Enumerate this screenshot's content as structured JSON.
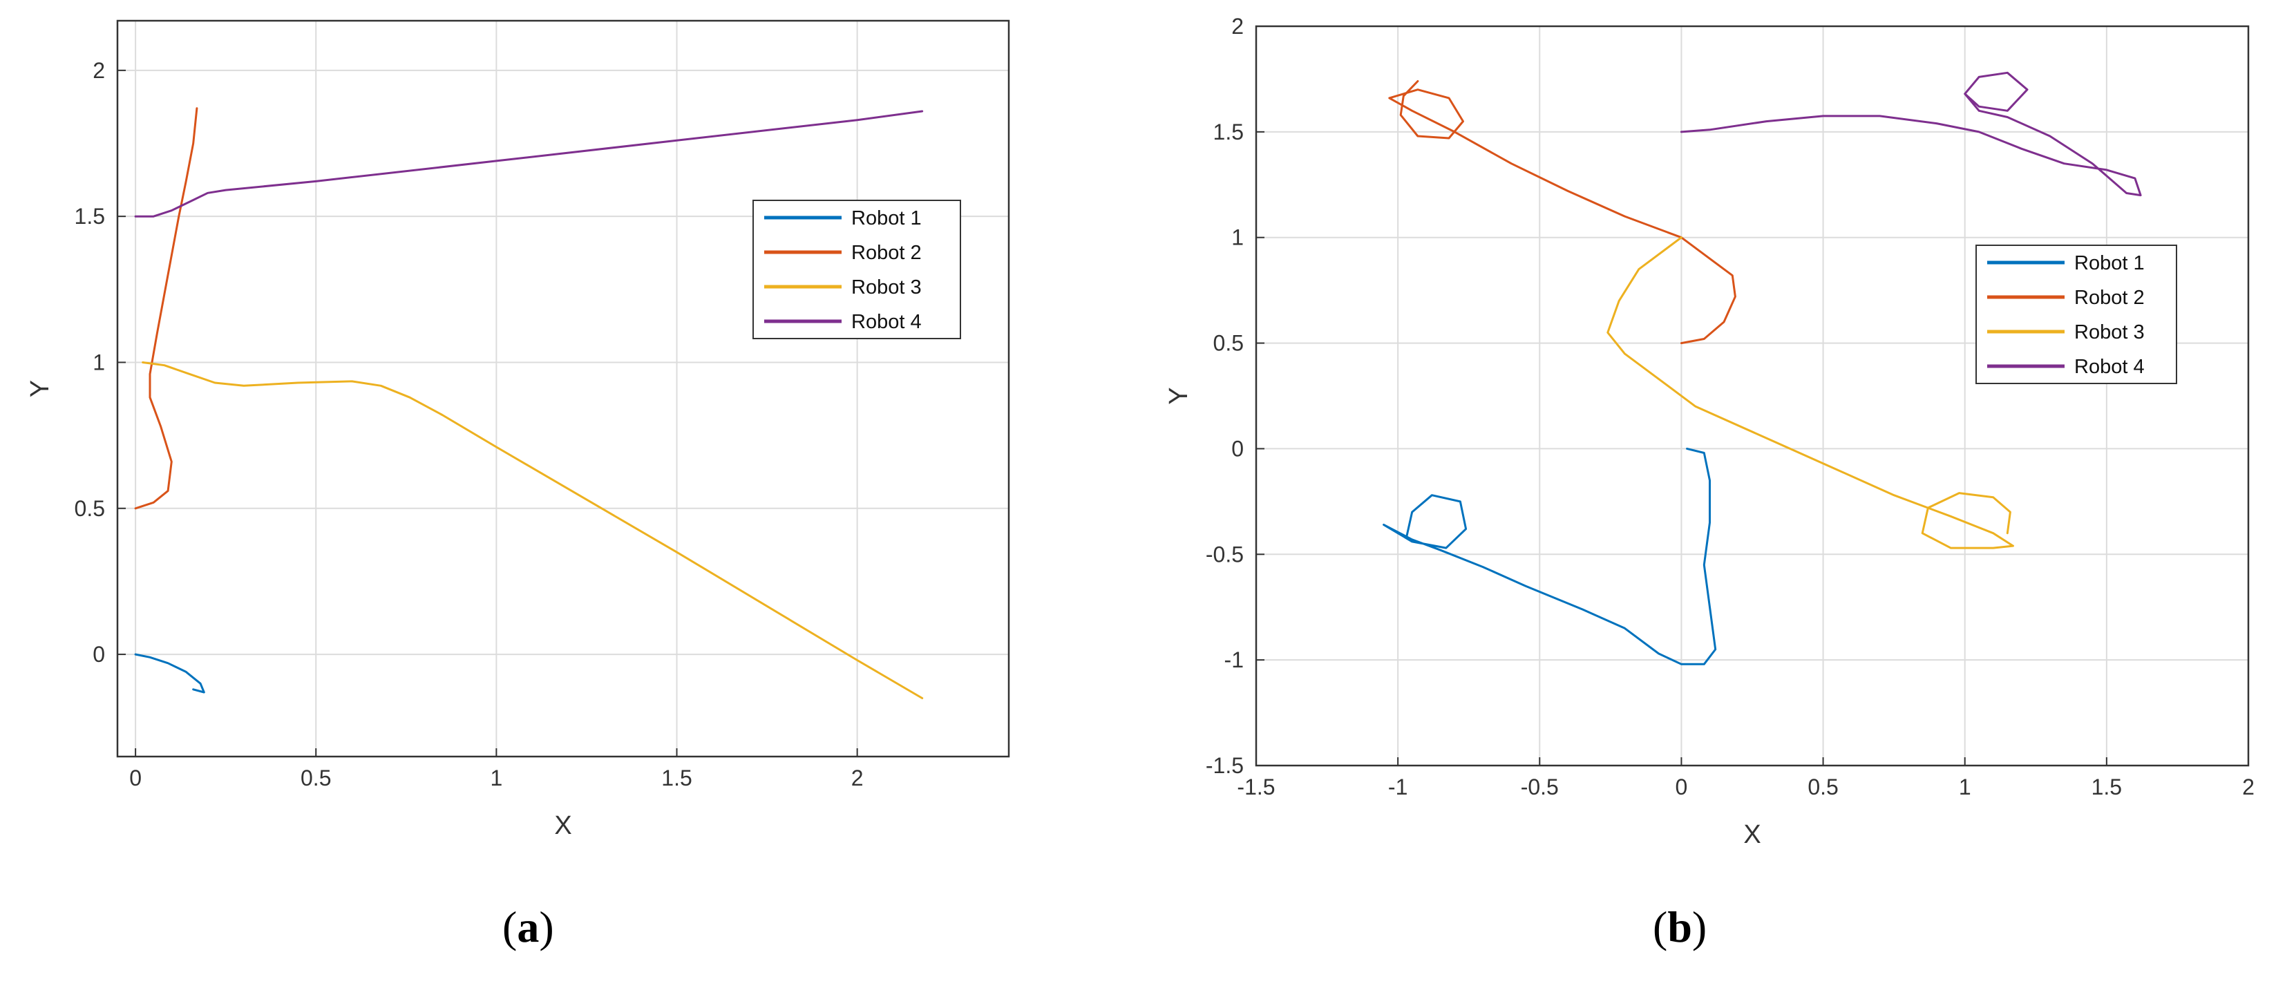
{
  "chart_data": [
    {
      "type": "line",
      "panel_label": "a",
      "xlabel": "X",
      "ylabel": "Y",
      "xlim": [
        -0.05,
        2.42
      ],
      "ylim": [
        -0.35,
        2.17
      ],
      "xticks": [
        0,
        0.5,
        1,
        1.5,
        2
      ],
      "yticks": [
        0,
        0.5,
        1,
        1.5,
        2
      ],
      "xtick_labels": [
        "0",
        "0.5",
        "1",
        "1.5",
        "2"
      ],
      "ytick_labels": [
        "0",
        "0.5",
        "1",
        "1.5",
        "2"
      ],
      "grid": true,
      "legend_position": "right",
      "series": [
        {
          "name": "Robot 1",
          "color": "#0072BD",
          "points": [
            [
              0,
              0
            ],
            [
              0.04,
              -0.01
            ],
            [
              0.09,
              -0.03
            ],
            [
              0.14,
              -0.06
            ],
            [
              0.18,
              -0.1
            ],
            [
              0.19,
              -0.13
            ],
            [
              0.16,
              -0.12
            ]
          ]
        },
        {
          "name": "Robot 2",
          "color": "#D95319",
          "points": [
            [
              0,
              0.5
            ],
            [
              0.05,
              0.52
            ],
            [
              0.09,
              0.56
            ],
            [
              0.1,
              0.66
            ],
            [
              0.07,
              0.78
            ],
            [
              0.04,
              0.88
            ],
            [
              0.04,
              0.96
            ],
            [
              0.06,
              1.1
            ],
            [
              0.09,
              1.3
            ],
            [
              0.12,
              1.5
            ],
            [
              0.14,
              1.62
            ],
            [
              0.16,
              1.75
            ],
            [
              0.17,
              1.87
            ]
          ]
        },
        {
          "name": "Robot 3",
          "color": "#EDB120",
          "points": [
            [
              0.02,
              1.0
            ],
            [
              0.08,
              0.99
            ],
            [
              0.15,
              0.96
            ],
            [
              0.22,
              0.93
            ],
            [
              0.3,
              0.92
            ],
            [
              0.45,
              0.93
            ],
            [
              0.6,
              0.935
            ],
            [
              0.68,
              0.92
            ],
            [
              0.76,
              0.88
            ],
            [
              0.85,
              0.82
            ],
            [
              1.0,
              0.71
            ],
            [
              1.5,
              0.35
            ],
            [
              2.0,
              -0.02
            ],
            [
              2.18,
              -0.15
            ]
          ]
        },
        {
          "name": "Robot 4",
          "color": "#7E2F8E",
          "points": [
            [
              0,
              1.5
            ],
            [
              0.05,
              1.5
            ],
            [
              0.1,
              1.52
            ],
            [
              0.15,
              1.55
            ],
            [
              0.2,
              1.58
            ],
            [
              0.25,
              1.59
            ],
            [
              0.5,
              1.62
            ],
            [
              1.0,
              1.69
            ],
            [
              1.5,
              1.76
            ],
            [
              2.0,
              1.83
            ],
            [
              2.18,
              1.86
            ]
          ]
        }
      ]
    },
    {
      "type": "line",
      "panel_label": "b",
      "xlabel": "X",
      "ylabel": "Y",
      "xlim": [
        -1.5,
        2
      ],
      "ylim": [
        -1.5,
        2
      ],
      "xticks": [
        -1.5,
        -1,
        -0.5,
        0,
        0.5,
        1,
        1.5,
        2
      ],
      "yticks": [
        -1.5,
        -1,
        -0.5,
        0,
        0.5,
        1,
        1.5,
        2
      ],
      "xtick_labels": [
        "-1.5",
        "-1",
        "-0.5",
        "0",
        "0.5",
        "1",
        "1.5",
        "2"
      ],
      "ytick_labels": [
        "-1.5",
        "-1",
        "-0.5",
        "0",
        "0.5",
        "1",
        "1.5",
        "2"
      ],
      "grid": true,
      "legend_position": "right",
      "series": [
        {
          "name": "Robot 1",
          "color": "#0072BD",
          "points": [
            [
              0.02,
              0
            ],
            [
              0.08,
              -0.02
            ],
            [
              0.1,
              -0.15
            ],
            [
              0.1,
              -0.35
            ],
            [
              0.08,
              -0.55
            ],
            [
              0.1,
              -0.75
            ],
            [
              0.12,
              -0.95
            ],
            [
              0.08,
              -1.02
            ],
            [
              0.0,
              -1.02
            ],
            [
              -0.08,
              -0.97
            ],
            [
              -0.2,
              -0.85
            ],
            [
              -0.35,
              -0.76
            ],
            [
              -0.55,
              -0.65
            ],
            [
              -0.7,
              -0.56
            ],
            [
              -0.85,
              -0.48
            ],
            [
              -0.95,
              -0.43
            ],
            [
              -1.05,
              -0.36
            ],
            [
              -0.95,
              -0.44
            ],
            [
              -0.83,
              -0.47
            ],
            [
              -0.76,
              -0.38
            ],
            [
              -0.78,
              -0.25
            ],
            [
              -0.88,
              -0.22
            ],
            [
              -0.95,
              -0.3
            ],
            [
              -0.97,
              -0.42
            ]
          ]
        },
        {
          "name": "Robot 2",
          "color": "#D95319",
          "points": [
            [
              0,
              0.5
            ],
            [
              0.08,
              0.52
            ],
            [
              0.15,
              0.6
            ],
            [
              0.19,
              0.72
            ],
            [
              0.18,
              0.82
            ],
            [
              0.1,
              0.9
            ],
            [
              0.0,
              1.0
            ],
            [
              -0.2,
              1.1
            ],
            [
              -0.4,
              1.22
            ],
            [
              -0.6,
              1.35
            ],
            [
              -0.8,
              1.5
            ],
            [
              -0.95,
              1.6
            ],
            [
              -1.03,
              1.66
            ],
            [
              -0.93,
              1.7
            ],
            [
              -0.82,
              1.66
            ],
            [
              -0.77,
              1.55
            ],
            [
              -0.82,
              1.47
            ],
            [
              -0.93,
              1.48
            ],
            [
              -0.99,
              1.58
            ],
            [
              -0.98,
              1.67
            ],
            [
              -0.93,
              1.74
            ]
          ]
        },
        {
          "name": "Robot 3",
          "color": "#EDB120",
          "points": [
            [
              0,
              1.0
            ],
            [
              -0.05,
              0.95
            ],
            [
              -0.15,
              0.85
            ],
            [
              -0.22,
              0.7
            ],
            [
              -0.26,
              0.55
            ],
            [
              -0.2,
              0.45
            ],
            [
              -0.1,
              0.35
            ],
            [
              0.05,
              0.2
            ],
            [
              0.3,
              0.05
            ],
            [
              0.55,
              -0.1
            ],
            [
              0.75,
              -0.22
            ],
            [
              0.95,
              -0.32
            ],
            [
              1.1,
              -0.4
            ],
            [
              1.17,
              -0.46
            ],
            [
              1.1,
              -0.47
            ],
            [
              0.95,
              -0.47
            ],
            [
              0.85,
              -0.4
            ],
            [
              0.87,
              -0.28
            ],
            [
              0.98,
              -0.21
            ],
            [
              1.1,
              -0.23
            ],
            [
              1.16,
              -0.3
            ],
            [
              1.15,
              -0.4
            ]
          ]
        },
        {
          "name": "Robot 4",
          "color": "#7E2F8E",
          "points": [
            [
              0,
              1.5
            ],
            [
              0.1,
              1.51
            ],
            [
              0.3,
              1.55
            ],
            [
              0.5,
              1.575
            ],
            [
              0.7,
              1.575
            ],
            [
              0.9,
              1.54
            ],
            [
              1.05,
              1.5
            ],
            [
              1.2,
              1.42
            ],
            [
              1.35,
              1.35
            ],
            [
              1.5,
              1.32
            ],
            [
              1.6,
              1.28
            ],
            [
              1.62,
              1.2
            ],
            [
              1.57,
              1.21
            ],
            [
              1.45,
              1.35
            ],
            [
              1.3,
              1.48
            ],
            [
              1.15,
              1.57
            ],
            [
              1.05,
              1.6
            ],
            [
              1.0,
              1.68
            ],
            [
              1.05,
              1.76
            ],
            [
              1.15,
              1.78
            ],
            [
              1.22,
              1.7
            ],
            [
              1.15,
              1.6
            ],
            [
              1.05,
              1.62
            ],
            [
              1.0,
              1.68
            ]
          ]
        }
      ]
    }
  ]
}
